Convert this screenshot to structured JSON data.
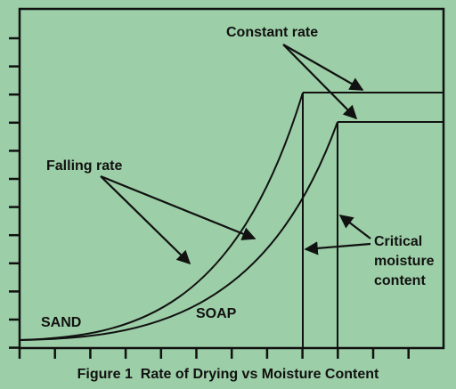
{
  "colors": {
    "background": "#9ccea7",
    "ink": "#111111"
  },
  "chart_data": {
    "type": "line",
    "xlabel": "",
    "ylabel": "",
    "grid": false,
    "series": [
      {
        "name": "SAND",
        "segments": [
          "Falling rate",
          "Constant rate"
        ]
      },
      {
        "name": "SOAP",
        "segments": [
          "Falling rate",
          "Constant rate"
        ]
      }
    ],
    "annotations": {
      "constant_rate": "Constant rate",
      "falling_rate": "Falling rate",
      "critical_line1": "Critical",
      "critical_line2": "moisture",
      "critical_line3": "content"
    }
  },
  "labels": {
    "sand": "SAND",
    "soap": "SOAP"
  },
  "caption": "Figure 1  Rate of Drying vs Moisture Content"
}
